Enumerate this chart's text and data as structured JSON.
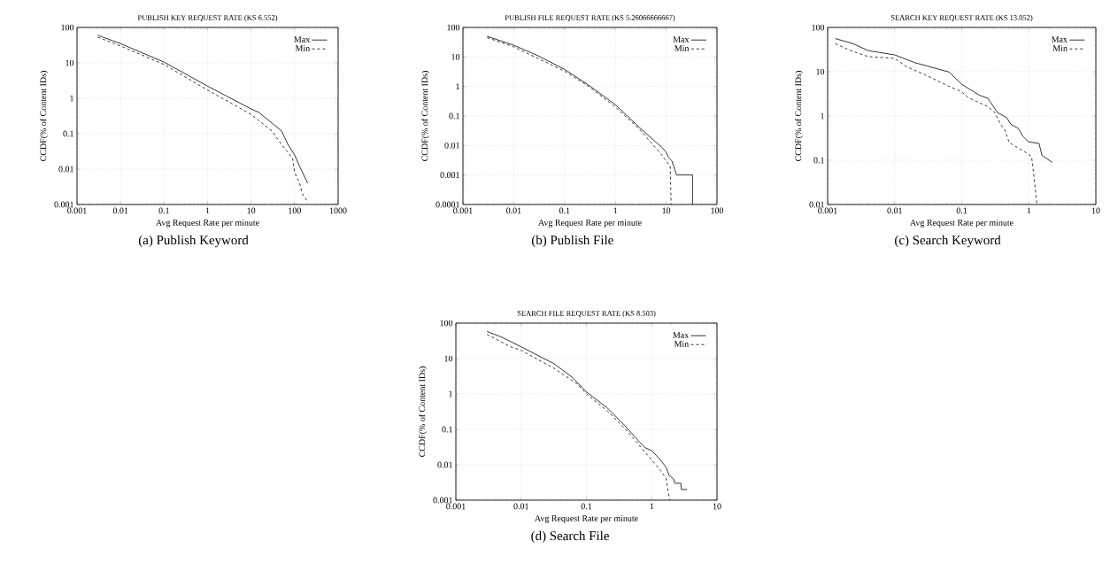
{
  "chart_data": [
    {
      "type": "line",
      "title": "PUBLISH KEY REQUEST RATE (KS 6.552)",
      "xlabel": "Avg Request Rate per minute",
      "ylabel": "CCDF(% of Content IDs)",
      "annotations": [
        "(a) Publish Keyword"
      ],
      "log": "xy",
      "grid": true,
      "legend": "top right",
      "xlim": [
        0.001,
        1000
      ],
      "ylim": [
        0.001,
        100
      ],
      "xticks": [
        0.001,
        0.01,
        0.1,
        1,
        10,
        100,
        1000
      ],
      "yticks": [
        0.001,
        0.01,
        0.1,
        1,
        10,
        100
      ],
      "series": [
        {
          "name": "Max",
          "color": "#000000",
          "line_style": "solid",
          "x": [
            0.003,
            0.01,
            0.1,
            1,
            10,
            15,
            30,
            50,
            70,
            100,
            130,
            200
          ],
          "values": [
            60,
            35,
            10.5,
            2.2,
            0.5,
            0.4,
            0.2,
            0.12,
            0.05,
            0.025,
            0.012,
            0.004
          ]
        },
        {
          "name": "Min",
          "color": "#000000",
          "line_style": "dashed",
          "x": [
            0.003,
            0.01,
            0.1,
            1,
            10,
            30,
            50,
            90,
            100,
            130,
            150,
            200
          ],
          "values": [
            53,
            30,
            9,
            1.7,
            0.35,
            0.12,
            0.05,
            0.02,
            0.008,
            0.004,
            0.002,
            0.0012
          ]
        }
      ]
    },
    {
      "type": "line",
      "title": "PUBLISH FILE REQUEST RATE (KS 5.26066666667)",
      "xlabel": "Avg Request Rate per minute",
      "ylabel": "CCDF(% of Content IDs)",
      "annotations": [
        "(b) Publish File"
      ],
      "log": "xy",
      "grid": true,
      "legend": "top right",
      "xlim": [
        0.001,
        100
      ],
      "ylim": [
        0.0001,
        100
      ],
      "xticks": [
        0.001,
        0.01,
        0.1,
        1,
        10,
        100
      ],
      "yticks": [
        0.0001,
        0.001,
        0.01,
        0.1,
        1,
        10,
        100
      ],
      "series": [
        {
          "name": "Max",
          "color": "#000000",
          "line_style": "solid",
          "x": [
            0.003,
            0.01,
            0.03,
            0.1,
            0.3,
            1,
            3,
            8,
            10,
            11,
            13,
            14,
            16,
            33,
            33
          ],
          "values": [
            50,
            25,
            11,
            3.8,
            1.1,
            0.24,
            0.04,
            0.009,
            0.006,
            0.004,
            0.003,
            0.002,
            0.001,
            0.001,
            0.0001
          ]
        },
        {
          "name": "Min",
          "color": "#000000",
          "line_style": "dashed",
          "x": [
            0.003,
            0.01,
            0.1,
            0.3,
            1,
            3,
            8,
            10,
            12,
            12.5
          ],
          "values": [
            45,
            22,
            3.3,
            1.0,
            0.2,
            0.035,
            0.005,
            0.003,
            0.002,
            0.0001
          ]
        }
      ]
    },
    {
      "type": "line",
      "title": "SEARCH KEY REQUEST RATE (KS 13.052)",
      "xlabel": "Avg Request Rate per minute",
      "ylabel": "CCDF(% of Content IDs)",
      "annotations": [
        "(c) Search Keyword"
      ],
      "log": "xy",
      "grid": true,
      "legend": "top right",
      "xlim": [
        0.001,
        10
      ],
      "ylim": [
        0.01,
        100
      ],
      "xticks": [
        0.001,
        0.01,
        0.1,
        1,
        10
      ],
      "yticks": [
        0.01,
        0.1,
        1,
        10,
        100
      ],
      "series": [
        {
          "name": "Max",
          "color": "#000000",
          "line_style": "solid",
          "x": [
            0.0013,
            0.0024,
            0.004,
            0.01,
            0.02,
            0.065,
            0.1,
            0.125,
            0.153,
            0.187,
            0.246,
            0.34,
            0.47,
            0.54,
            0.7,
            0.81,
            0.99,
            1.42,
            1.57,
            2.24
          ],
          "values": [
            56,
            43,
            30,
            24,
            16,
            9.8,
            5.2,
            4.2,
            3.5,
            2.9,
            2.5,
            1.2,
            0.91,
            0.65,
            0.52,
            0.35,
            0.26,
            0.24,
            0.13,
            0.089
          ]
        },
        {
          "name": "Min",
          "color": "#000000",
          "line_style": "dashed",
          "x": [
            0.0013,
            0.0022,
            0.004,
            0.01,
            0.015,
            0.03,
            0.062,
            0.1,
            0.125,
            0.25,
            0.31,
            0.38,
            0.44,
            0.51,
            0.9,
            1.1,
            1.2,
            1.32
          ],
          "values": [
            43,
            30,
            22,
            20,
            13,
            8.2,
            4.8,
            3.5,
            2.6,
            1.6,
            1.2,
            0.65,
            0.48,
            0.25,
            0.15,
            0.12,
            0.041,
            0.01
          ]
        }
      ]
    },
    {
      "type": "line",
      "title": "SEARCH FILE REQUEST RATE (KS 8.503)",
      "xlabel": "Avg Request Rate per minute",
      "ylabel": "CCDF(% of Content IDs)",
      "annotations": [
        "(d) Search File"
      ],
      "log": "xy",
      "grid": true,
      "legend": "top right",
      "xlim": [
        0.001,
        10
      ],
      "ylim": [
        0.001,
        100
      ],
      "xticks": [
        0.001,
        0.01,
        0.1,
        1,
        10
      ],
      "yticks": [
        0.001,
        0.01,
        0.1,
        1,
        10,
        100
      ],
      "series": [
        {
          "name": "Max",
          "color": "#000000",
          "line_style": "solid",
          "x": [
            0.003,
            0.0049,
            0.01,
            0.032,
            0.06,
            0.1,
            0.21,
            0.39,
            0.65,
            0.8,
            1.0,
            1.3,
            1.66,
            1.85,
            2.15,
            2.26,
            2.8,
            2.85,
            3.5
          ],
          "values": [
            58,
            41,
            21.5,
            7.1,
            3.0,
            1.14,
            0.4,
            0.126,
            0.044,
            0.03,
            0.025,
            0.015,
            0.0086,
            0.005,
            0.004,
            0.003,
            0.003,
            0.002,
            0.002
          ]
        },
        {
          "name": "Min",
          "color": "#000000",
          "line_style": "dashed",
          "x": [
            0.003,
            0.0067,
            0.01,
            0.032,
            0.074,
            0.1,
            0.21,
            0.43,
            0.9,
            1.36,
            1.66,
            1.88
          ],
          "values": [
            48,
            22,
            17,
            5.3,
            1.85,
            1.0,
            0.33,
            0.086,
            0.017,
            0.007,
            0.0041,
            0.001
          ]
        }
      ]
    }
  ]
}
